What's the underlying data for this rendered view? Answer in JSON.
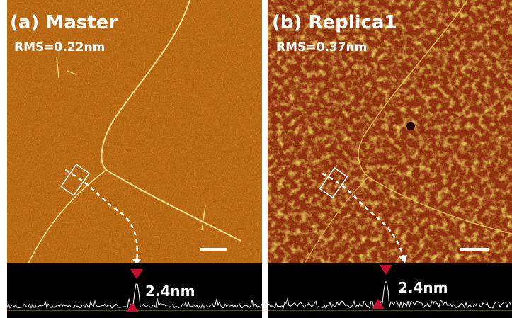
{
  "panels": [
    {
      "title": "(a) Master",
      "rms": "RMS=0.22nm",
      "height_label": "2.4nm"
    },
    {
      "title": "(b) Replica1",
      "rms": "RMS=0.37nm",
      "height_label": "2.4nm"
    }
  ]
}
